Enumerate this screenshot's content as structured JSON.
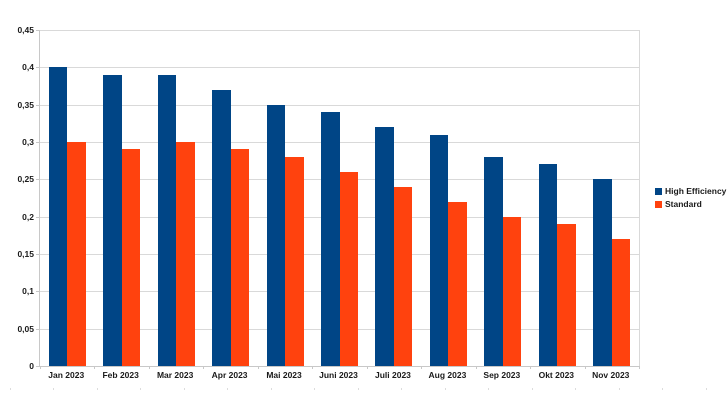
{
  "chart_data": {
    "type": "bar",
    "categories": [
      "Jan 2023",
      "Feb 2023",
      "Mar 2023",
      "Apr 2023",
      "Mai 2023",
      "Juni 2023",
      "Juli 2023",
      "Aug 2023",
      "Sep 2023",
      "Okt 2023",
      "Nov 2023"
    ],
    "series": [
      {
        "name": "High Efficiency",
        "color": "#004586",
        "values": [
          0.4,
          0.39,
          0.39,
          0.37,
          0.35,
          0.34,
          0.32,
          0.31,
          0.28,
          0.27,
          0.25
        ]
      },
      {
        "name": "Standard",
        "color": "#FF420E",
        "values": [
          0.3,
          0.29,
          0.3,
          0.29,
          0.28,
          0.26,
          0.24,
          0.22,
          0.2,
          0.19,
          0.17
        ]
      }
    ],
    "title": "",
    "xlabel": "",
    "ylabel": "",
    "ylim": [
      0,
      0.45
    ],
    "ytick_step": 0.05,
    "ytick_labels": [
      "0",
      "0,05",
      "0,1",
      "0,15",
      "0,2",
      "0,25",
      "0,3",
      "0,35",
      "0,4",
      "0,45"
    ],
    "grid": true,
    "legend_position": "right",
    "decimal_separator": ","
  },
  "colors": {
    "background": "#ffffff",
    "gridline": "#d9d9d9",
    "axis_line": "#c8c8c8",
    "label_text": "#1a1a1a"
  }
}
